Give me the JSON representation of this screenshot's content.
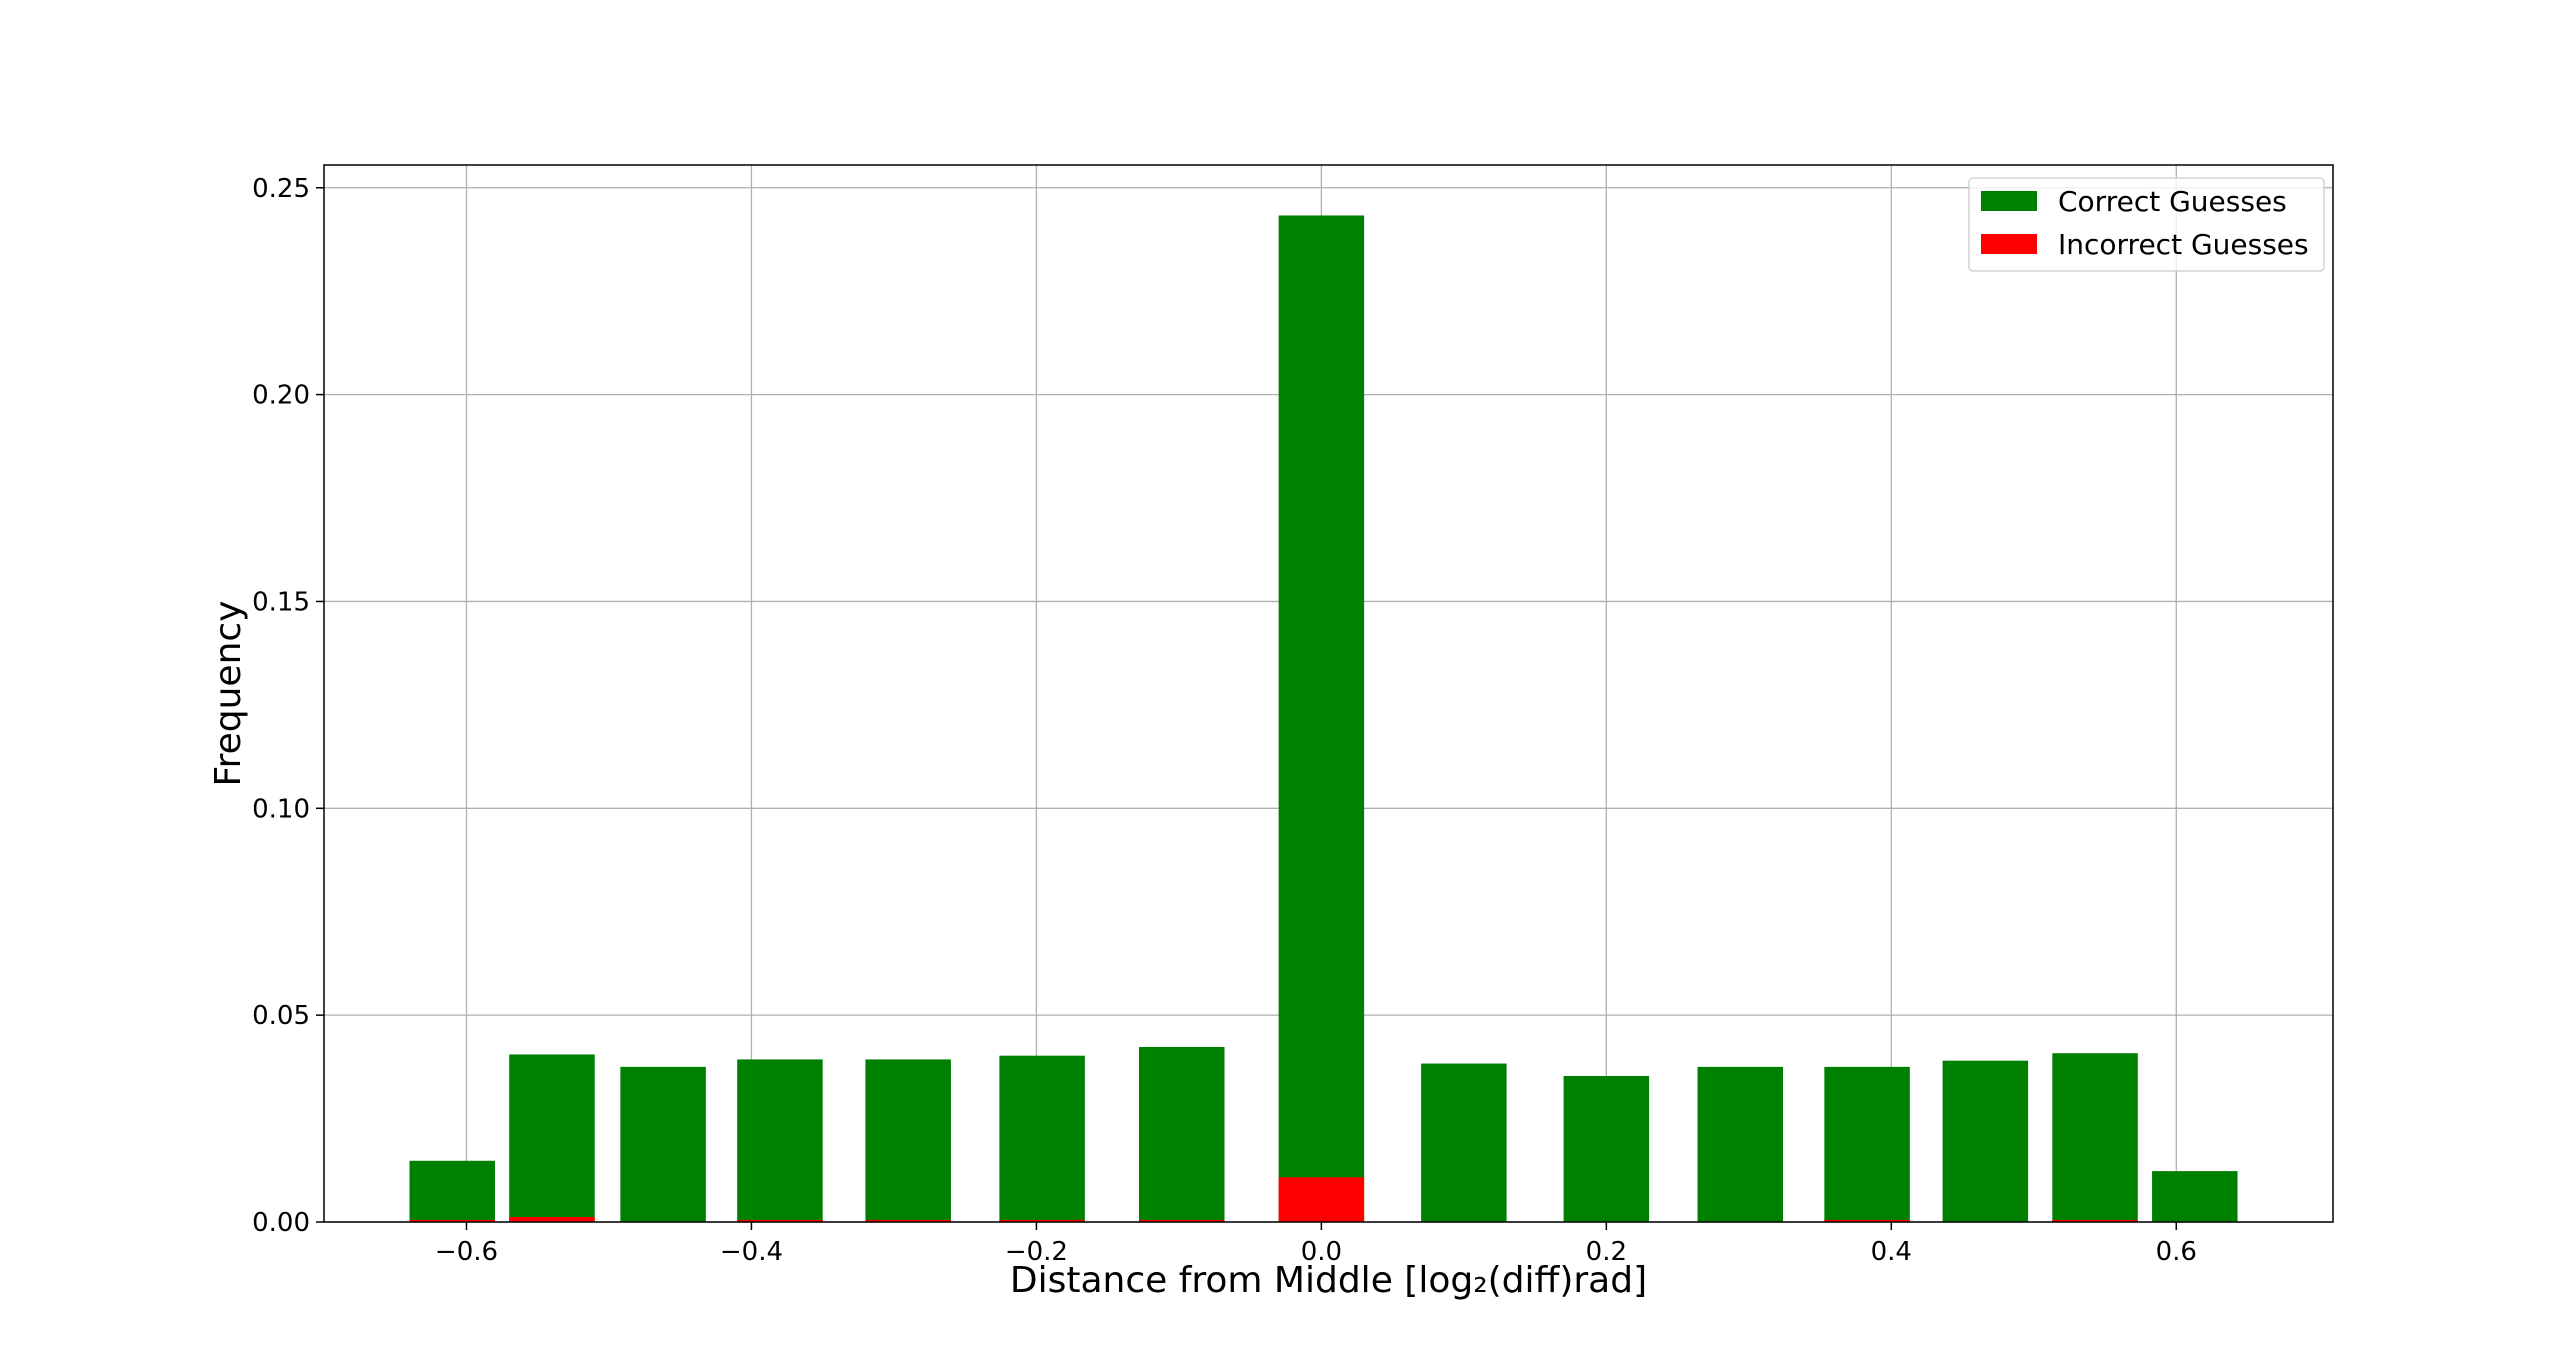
{
  "chart_data": {
    "type": "bar",
    "title": "",
    "xlabel": "Distance from Middle [log₂(diff)rad]",
    "ylabel": "Frequency",
    "xlim": [
      -0.7,
      0.71
    ],
    "ylim": [
      0.0,
      0.2555
    ],
    "xticks": [
      -0.6,
      -0.4,
      -0.2,
      0.0,
      0.2,
      0.4,
      0.6
    ],
    "xtick_labels": [
      "−0.6",
      "−0.4",
      "−0.2",
      "0.0",
      "0.2",
      "0.4",
      "0.6"
    ],
    "yticks": [
      0.0,
      0.05,
      0.1,
      0.15,
      0.2,
      0.25
    ],
    "ytick_labels": [
      "0.00",
      "0.05",
      "0.10",
      "0.15",
      "0.20",
      "0.25"
    ],
    "grid": true,
    "legend_position": "top-right",
    "bar_width": 0.06,
    "x": [
      -0.61,
      -0.54,
      -0.462,
      -0.38,
      -0.29,
      -0.196,
      -0.098,
      0.0,
      0.1,
      0.2,
      0.294,
      0.383,
      0.466,
      0.543,
      0.613
    ],
    "series": [
      {
        "name": "Correct Guesses",
        "color": "#008000",
        "values": [
          0.0148,
          0.0405,
          0.0375,
          0.0393,
          0.0393,
          0.0402,
          0.0423,
          0.2433,
          0.0383,
          0.0353,
          0.0375,
          0.0375,
          0.039,
          0.0408,
          0.0123
        ]
      },
      {
        "name": "Incorrect Guesses",
        "color": "#ff0000",
        "values": [
          0.0005,
          0.0012,
          0.0,
          0.0005,
          0.0005,
          0.0005,
          0.0005,
          0.0108,
          0.0,
          0.0,
          0.0,
          0.0005,
          0.0,
          0.0005,
          0.0
        ]
      }
    ]
  }
}
